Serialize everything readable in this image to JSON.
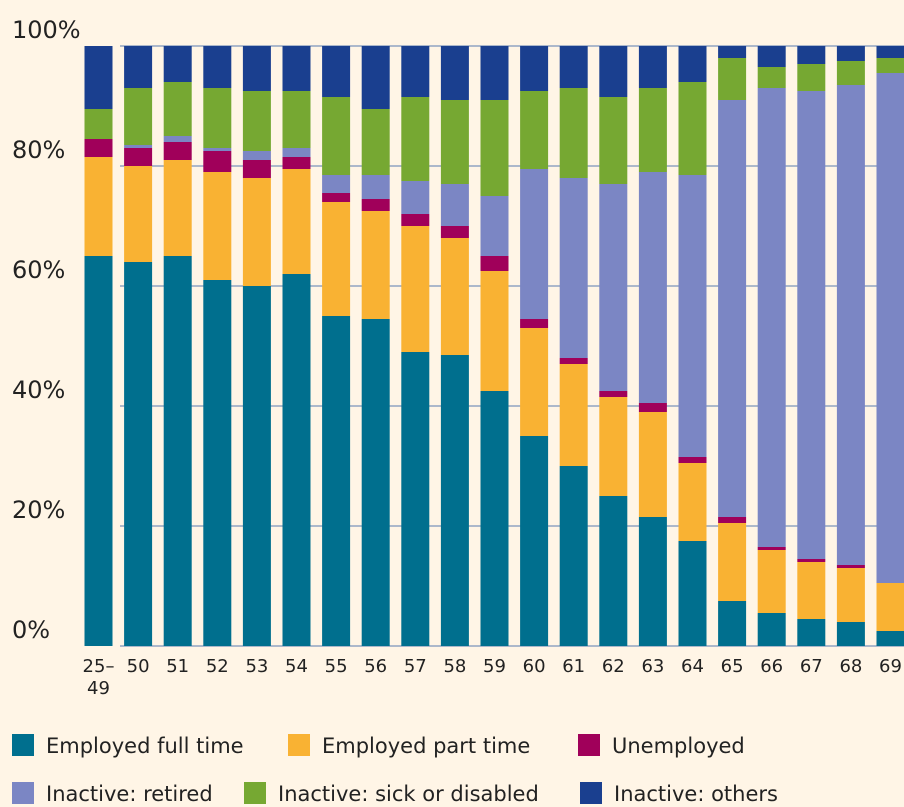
{
  "chart_data": {
    "type": "stacked_bar",
    "categories": [
      "25–49",
      "50",
      "51",
      "52",
      "53",
      "54",
      "55",
      "56",
      "57",
      "58",
      "59",
      "60",
      "61",
      "62",
      "63",
      "64",
      "65",
      "66",
      "67",
      "68",
      "69"
    ],
    "series": [
      {
        "name": "Employed full time",
        "color": "#006f8e",
        "values": [
          65,
          64,
          65,
          61,
          60,
          62,
          55,
          54.5,
          49,
          48.5,
          42.5,
          35,
          30,
          25,
          21.5,
          17.5,
          7.5,
          5.5,
          4.5,
          4,
          2.5
        ]
      },
      {
        "name": "Employed part time",
        "color": "#f9b233",
        "values": [
          16.5,
          16,
          16,
          18,
          18,
          17.5,
          19,
          18,
          21,
          19.5,
          20,
          18,
          17,
          16.5,
          17.5,
          13,
          13,
          10.5,
          9.5,
          9,
          8
        ]
      },
      {
        "name": "Unemployed",
        "color": "#a0005a",
        "values": [
          3,
          3,
          3,
          3.5,
          3,
          2,
          1.5,
          2,
          2,
          2,
          2.5,
          1.5,
          1,
          1,
          1.5,
          1,
          1,
          0.5,
          0.5,
          0.5,
          0
        ]
      },
      {
        "name": "Inactive: retired",
        "color": "#7b86c4",
        "values": [
          0,
          0.5,
          1,
          0.5,
          1.5,
          1.5,
          3,
          4,
          5.5,
          7,
          10,
          25,
          30,
          34.5,
          38.5,
          47,
          69.5,
          76.5,
          78,
          80,
          85
        ]
      },
      {
        "name": "Inactive: sick or disabled",
        "color": "#76a832",
        "values": [
          5,
          9.5,
          9,
          10,
          10,
          9.5,
          13,
          11,
          14,
          14,
          16,
          13,
          15,
          14.5,
          14,
          15.5,
          7,
          3.5,
          4.5,
          4,
          2.5
        ]
      },
      {
        "name": "Inactive: others",
        "color": "#1a3f8f",
        "values": [
          10.5,
          7,
          6,
          7,
          7.5,
          7.5,
          8.5,
          10.5,
          8.5,
          9,
          9,
          7.5,
          7,
          8.5,
          7,
          6,
          2,
          3.5,
          3,
          2.5,
          2
        ]
      }
    ],
    "ylim": [
      0,
      100
    ],
    "yticks": [
      {
        "value": 0,
        "label": "0%"
      },
      {
        "value": 20,
        "label": "20%"
      },
      {
        "value": 40,
        "label": "40%"
      },
      {
        "value": 60,
        "label": "60%"
      },
      {
        "value": 80,
        "label": "80%"
      },
      {
        "value": 100,
        "label": "100%"
      }
    ],
    "grid": true
  }
}
